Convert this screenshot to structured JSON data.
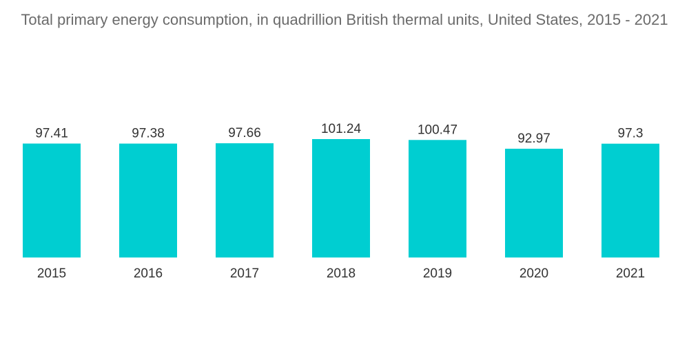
{
  "chart_data": {
    "type": "bar",
    "title": "Total primary energy consumption, in quadrillion British thermal units, United States, 2015 - 2021",
    "categories": [
      "2015",
      "2016",
      "2017",
      "2018",
      "2019",
      "2020",
      "2021"
    ],
    "values": [
      97.41,
      97.38,
      97.66,
      101.24,
      100.47,
      92.97,
      97.3
    ],
    "value_labels": [
      "97.41",
      "97.38",
      "97.66",
      "101.24",
      "100.47",
      "92.97",
      "97.3"
    ],
    "xlabel": "",
    "ylabel": "",
    "ylim": [
      0,
      101.24
    ],
    "grid": false,
    "legend": "none",
    "bar_color": "#00ced1"
  }
}
